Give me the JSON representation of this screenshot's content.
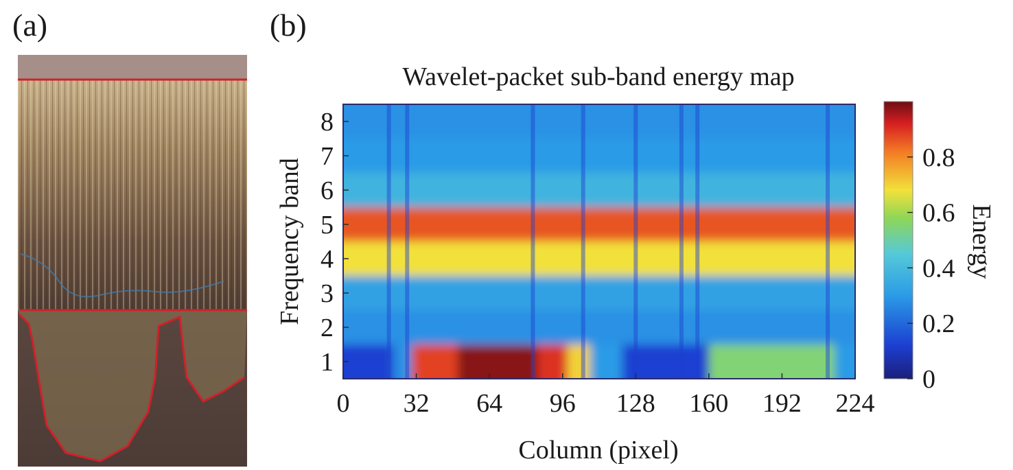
{
  "panels": {
    "a_label": "(a)",
    "b_label": "(b)"
  },
  "micrograph": {
    "description_icon": "microstructure-photo",
    "boundary_color": "#d0212a"
  },
  "chart_data": {
    "type": "heatmap",
    "title": "Wavelet-packet sub-band energy map",
    "xlabel": "Column (pixel)",
    "ylabel": "Frequency band",
    "colorbar_label": "Energy",
    "x_range": [
      0,
      224
    ],
    "y_range": [
      0.5,
      8.5
    ],
    "x_ticks": [
      "0",
      "32",
      "64",
      "96",
      "128",
      "160",
      "192",
      "224"
    ],
    "y_ticks": [
      "1",
      "2",
      "3",
      "4",
      "5",
      "6",
      "7",
      "8"
    ],
    "colorbar_range": [
      0,
      1
    ],
    "colorbar_ticks": [
      "0",
      "0.2",
      "0.4",
      "0.6",
      "0.8"
    ],
    "colormap": "jet",
    "bands": [
      {
        "band": 1,
        "segments": [
          {
            "x": [
              0,
              22
            ],
            "value": 0.12
          },
          {
            "x": [
              22,
              30
            ],
            "value": 0.28
          },
          {
            "x": [
              30,
              50
            ],
            "value": 0.88
          },
          {
            "x": [
              50,
              85
            ],
            "value": 0.98
          },
          {
            "x": [
              85,
              98
            ],
            "value": 0.9
          },
          {
            "x": [
              98,
              108
            ],
            "value": 0.7
          },
          {
            "x": [
              108,
              122
            ],
            "value": 0.3
          },
          {
            "x": [
              122,
              160
            ],
            "value": 0.12
          },
          {
            "x": [
              160,
              215
            ],
            "value": 0.55
          },
          {
            "x": [
              215,
              224
            ],
            "value": 0.3
          }
        ]
      },
      {
        "band": 2,
        "segments": [
          {
            "x": [
              0,
              224
            ],
            "value": 0.28
          }
        ]
      },
      {
        "band": 3,
        "segments": [
          {
            "x": [
              0,
              224
            ],
            "value": 0.32
          }
        ]
      },
      {
        "band": 4,
        "segments": [
          {
            "x": [
              0,
              224
            ],
            "value": 0.68
          }
        ]
      },
      {
        "band": 5,
        "segments": [
          {
            "x": [
              0,
              224
            ],
            "value": 0.86
          }
        ]
      },
      {
        "band": 6,
        "segments": [
          {
            "x": [
              0,
              224
            ],
            "value": 0.38
          }
        ]
      },
      {
        "band": 7,
        "segments": [
          {
            "x": [
              0,
              224
            ],
            "value": 0.3
          }
        ]
      },
      {
        "band": 8,
        "segments": [
          {
            "x": [
              0,
              224
            ],
            "value": 0.28
          }
        ]
      }
    ],
    "low_energy_columns": [
      20,
      28,
      83,
      105,
      128,
      148,
      155,
      212
    ]
  }
}
